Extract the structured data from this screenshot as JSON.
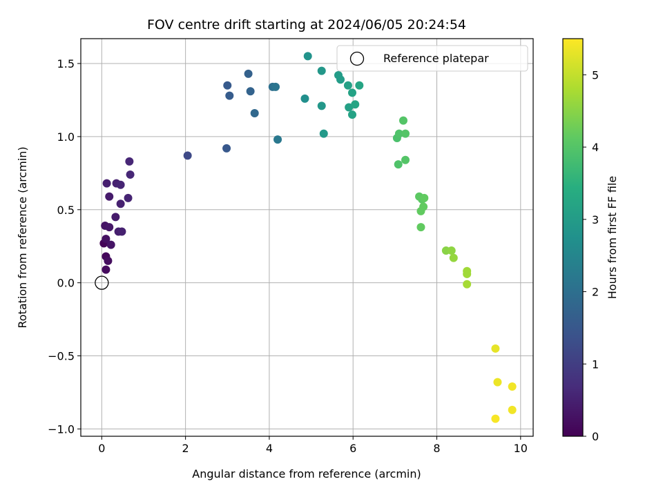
{
  "chart_data": {
    "type": "scatter",
    "title": "FOV centre drift starting at 2024/06/05 20:24:54",
    "xlabel": "Angular distance from reference (arcmin)",
    "ylabel": "Rotation from reference (arcmin)",
    "xlim": [
      -0.5,
      10.3
    ],
    "ylim": [
      -1.05,
      1.67
    ],
    "xticks": [
      0,
      2,
      4,
      6,
      8,
      10
    ],
    "xtick_labels": [
      "0",
      "2",
      "4",
      "6",
      "8",
      "10"
    ],
    "yticks": [
      -1.0,
      -0.5,
      0.0,
      0.5,
      1.0,
      1.5
    ],
    "ytick_labels": [
      "−1.0",
      "−0.5",
      "0.0",
      "0.5",
      "1.0",
      "1.5"
    ],
    "grid": true,
    "legend": {
      "position": "top-right",
      "entries": [
        "Reference platepar"
      ]
    },
    "reference_point": {
      "name": "Reference platepar",
      "x": 0.0,
      "y": 0.0
    },
    "colorbar": {
      "label": "Hours from first FF file",
      "colormap": "viridis",
      "range": [
        0,
        5.5
      ],
      "ticks": [
        0,
        1,
        2,
        3,
        4,
        5
      ],
      "tick_labels": [
        "0",
        "1",
        "2",
        "3",
        "4",
        "5"
      ]
    },
    "points": [
      {
        "x": 0.05,
        "y": 0.27,
        "c": 0.05
      },
      {
        "x": 0.1,
        "y": 0.18,
        "c": 0.1
      },
      {
        "x": 0.1,
        "y": 0.09,
        "c": 0.15
      },
      {
        "x": 0.15,
        "y": 0.15,
        "c": 0.2
      },
      {
        "x": 0.1,
        "y": 0.3,
        "c": 0.25
      },
      {
        "x": 0.22,
        "y": 0.26,
        "c": 0.3
      },
      {
        "x": 0.08,
        "y": 0.39,
        "c": 0.3
      },
      {
        "x": 0.18,
        "y": 0.38,
        "c": 0.35
      },
      {
        "x": 0.33,
        "y": 0.45,
        "c": 0.4
      },
      {
        "x": 0.4,
        "y": 0.35,
        "c": 0.45
      },
      {
        "x": 0.48,
        "y": 0.35,
        "c": 0.5
      },
      {
        "x": 0.45,
        "y": 0.54,
        "c": 0.5
      },
      {
        "x": 0.18,
        "y": 0.59,
        "c": 0.4
      },
      {
        "x": 0.12,
        "y": 0.68,
        "c": 0.45
      },
      {
        "x": 0.35,
        "y": 0.68,
        "c": 0.5
      },
      {
        "x": 0.45,
        "y": 0.67,
        "c": 0.55
      },
      {
        "x": 0.63,
        "y": 0.58,
        "c": 0.55
      },
      {
        "x": 0.68,
        "y": 0.74,
        "c": 0.6
      },
      {
        "x": 0.66,
        "y": 0.83,
        "c": 0.6
      },
      {
        "x": 2.05,
        "y": 0.87,
        "c": 1.2
      },
      {
        "x": 2.98,
        "y": 0.92,
        "c": 1.5
      },
      {
        "x": 3.0,
        "y": 1.35,
        "c": 1.55
      },
      {
        "x": 3.05,
        "y": 1.28,
        "c": 1.6
      },
      {
        "x": 3.5,
        "y": 1.43,
        "c": 1.7
      },
      {
        "x": 3.55,
        "y": 1.31,
        "c": 1.75
      },
      {
        "x": 3.65,
        "y": 1.16,
        "c": 1.85
      },
      {
        "x": 4.08,
        "y": 1.34,
        "c": 2.0
      },
      {
        "x": 4.15,
        "y": 1.34,
        "c": 2.1
      },
      {
        "x": 4.2,
        "y": 0.98,
        "c": 2.2
      },
      {
        "x": 4.85,
        "y": 1.26,
        "c": 2.7
      },
      {
        "x": 4.92,
        "y": 1.55,
        "c": 2.8
      },
      {
        "x": 5.25,
        "y": 1.45,
        "c": 2.9
      },
      {
        "x": 5.25,
        "y": 1.21,
        "c": 2.9
      },
      {
        "x": 5.3,
        "y": 1.02,
        "c": 2.95
      },
      {
        "x": 5.65,
        "y": 1.42,
        "c": 3.0
      },
      {
        "x": 5.7,
        "y": 1.39,
        "c": 3.0
      },
      {
        "x": 5.88,
        "y": 1.35,
        "c": 3.1
      },
      {
        "x": 5.9,
        "y": 1.2,
        "c": 3.1
      },
      {
        "x": 5.98,
        "y": 1.3,
        "c": 3.15
      },
      {
        "x": 5.98,
        "y": 1.15,
        "c": 3.15
      },
      {
        "x": 6.05,
        "y": 1.22,
        "c": 3.2
      },
      {
        "x": 6.15,
        "y": 1.35,
        "c": 3.2
      },
      {
        "x": 7.05,
        "y": 0.99,
        "c": 3.9
      },
      {
        "x": 7.1,
        "y": 1.02,
        "c": 3.95
      },
      {
        "x": 7.2,
        "y": 1.11,
        "c": 4.0
      },
      {
        "x": 7.25,
        "y": 1.02,
        "c": 4.0
      },
      {
        "x": 7.08,
        "y": 0.81,
        "c": 3.95
      },
      {
        "x": 7.25,
        "y": 0.84,
        "c": 4.0
      },
      {
        "x": 7.58,
        "y": 0.59,
        "c": 4.1
      },
      {
        "x": 7.65,
        "y": 0.57,
        "c": 4.1
      },
      {
        "x": 7.7,
        "y": 0.58,
        "c": 4.15
      },
      {
        "x": 7.68,
        "y": 0.52,
        "c": 4.15
      },
      {
        "x": 7.62,
        "y": 0.49,
        "c": 4.15
      },
      {
        "x": 7.62,
        "y": 0.38,
        "c": 4.15
      },
      {
        "x": 8.22,
        "y": 0.22,
        "c": 4.5
      },
      {
        "x": 8.35,
        "y": 0.22,
        "c": 4.55
      },
      {
        "x": 8.4,
        "y": 0.17,
        "c": 4.6
      },
      {
        "x": 8.72,
        "y": 0.08,
        "c": 4.7
      },
      {
        "x": 8.72,
        "y": 0.06,
        "c": 4.7
      },
      {
        "x": 8.72,
        "y": -0.01,
        "c": 4.75
      },
      {
        "x": 9.4,
        "y": -0.45,
        "c": 5.3
      },
      {
        "x": 9.45,
        "y": -0.68,
        "c": 5.35
      },
      {
        "x": 9.8,
        "y": -0.71,
        "c": 5.4
      },
      {
        "x": 9.8,
        "y": -0.87,
        "c": 5.4
      },
      {
        "x": 9.4,
        "y": -0.93,
        "c": 5.45
      }
    ]
  }
}
